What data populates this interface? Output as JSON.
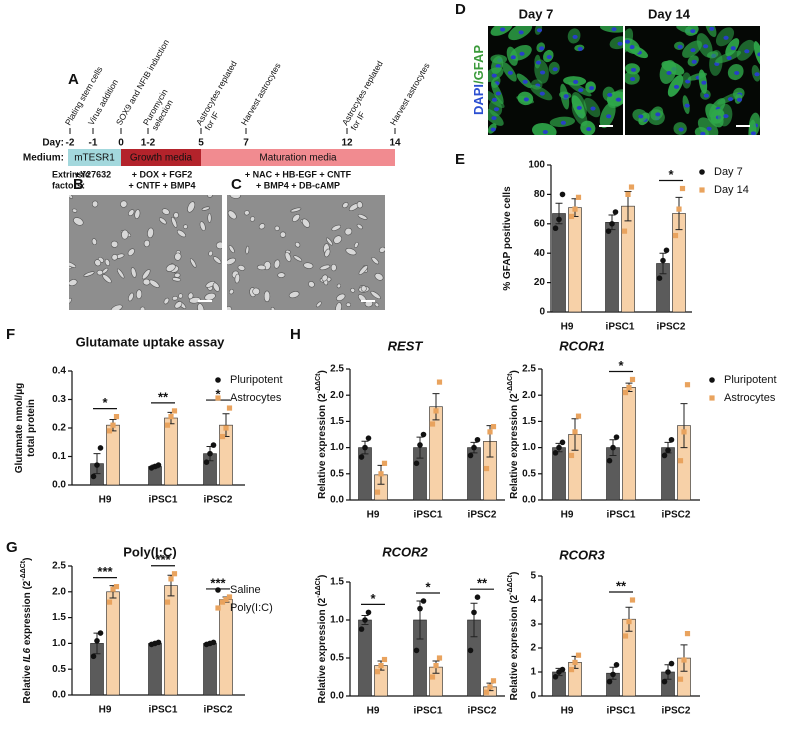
{
  "panel_labels": [
    "A",
    "B",
    "C",
    "D",
    "E",
    "F",
    "G",
    "H"
  ],
  "timeline": {
    "day_label": "Day:",
    "days": [
      "-2",
      "-1",
      "0",
      "1-2",
      "5",
      "7",
      "12",
      "14"
    ],
    "events": [
      [
        "Plating stem cells"
      ],
      [
        "Virus addition"
      ],
      [
        "SOX9 and NFIB induction"
      ],
      [
        "Puromycin",
        "selection"
      ],
      [
        "Astrocytes replated",
        "for IF"
      ],
      [
        "Harvest astrocytes"
      ],
      [
        "Astrocytes replated",
        "for IF"
      ],
      [
        "Harvest astrocytes"
      ]
    ],
    "medium_label": "Medium:",
    "media": [
      {
        "name": "mTESR1",
        "color": "#a3d8dd",
        "text_color": "#111111"
      },
      {
        "name": "Growth media",
        "color": "#b3232b",
        "text_color": "#ffffff"
      },
      {
        "name": "Maturation media",
        "color": "#f18b90",
        "text_color": "#111111"
      }
    ],
    "factors_label": [
      "Extrinsic",
      "factors:"
    ],
    "factors": [
      [
        "+Y27632"
      ],
      [
        "+ DOX + FGF2",
        "+ CNTF + BMP4"
      ],
      [
        "+ NAC + HB-EGF + CNTF",
        "+ BMP4 + DB-cAMP"
      ]
    ]
  },
  "panel_d": {
    "titles": [
      "Day 7",
      "Day 14"
    ],
    "stain": [
      {
        "text": "DAPI",
        "color": "#2b4fd1"
      },
      {
        "text": "/GFAP",
        "color": "#3a9a3a"
      }
    ]
  },
  "chart_data": [
    {
      "type": "bar",
      "ylabel": [
        [
          {
            "text": "% GFAP positive cells"
          }
        ]
      ],
      "categories": [
        "H9",
        "iPSC1",
        "iPSC2"
      ],
      "ylim": [
        0,
        100
      ],
      "yticks": [
        0,
        20,
        40,
        60,
        80,
        100
      ],
      "legend": true,
      "significance": [
        null,
        null,
        "*"
      ],
      "series": [
        {
          "name": "Day 7",
          "color": "#5b5b5b",
          "point_color": "#111111",
          "marker": "circle",
          "values": [
            67,
            61,
            33
          ],
          "errors": [
            7,
            5,
            7
          ],
          "points": [
            [
              57,
              63,
              80
            ],
            [
              55,
              60,
              68
            ],
            [
              23,
              35,
              42
            ]
          ]
        },
        {
          "name": "Day 14",
          "color": "#f7d1a8",
          "point_color": "#e9a35e",
          "marker": "square",
          "values": [
            71,
            72,
            67
          ],
          "errors": [
            6,
            10,
            11
          ],
          "points": [
            [
              65,
              70,
              78
            ],
            [
              55,
              80,
              85
            ],
            [
              52,
              70,
              84
            ]
          ]
        }
      ]
    },
    {
      "type": "bar",
      "title": "Glutamate uptake assay",
      "ylabel": [
        [
          {
            "text": "Glutamate nmol/μg"
          }
        ],
        [
          {
            "text": "total protein"
          }
        ]
      ],
      "categories": [
        "H9",
        "iPSC1",
        "iPSC2"
      ],
      "ylim": [
        0,
        0.4
      ],
      "yticks": [
        {
          "value": 0,
          "label": "0.0"
        },
        0.1,
        0.2,
        0.3,
        0.4
      ],
      "legend": true,
      "significance": [
        "*",
        "**",
        "*"
      ],
      "series": [
        {
          "name": "Pluripotent",
          "color": "#5b5b5b",
          "point_color": "#111111",
          "marker": "circle",
          "values": [
            0.075,
            0.065,
            0.11
          ],
          "errors": [
            0.035,
            0.005,
            0.025
          ],
          "points": [
            [
              0.03,
              0.07,
              0.13
            ],
            [
              0.06,
              0.065,
              0.07
            ],
            [
              0.08,
              0.11,
              0.14
            ]
          ]
        },
        {
          "name": "Astrocytes",
          "color": "#f7d1a8",
          "point_color": "#e9a35e",
          "marker": "square",
          "values": [
            0.21,
            0.235,
            0.21
          ],
          "errors": [
            0.02,
            0.02,
            0.04
          ],
          "points": [
            [
              0.19,
              0.21,
              0.24
            ],
            [
              0.21,
              0.24,
              0.26
            ],
            [
              0.17,
              0.2,
              0.27
            ]
          ]
        }
      ]
    },
    {
      "type": "bar",
      "title": "Poly(I:C)",
      "ylabel": [
        [
          {
            "text": "Relative "
          },
          {
            "text": "IL6",
            "italic": true
          },
          {
            "text": " expression (2"
          },
          {
            "text": "-ΔΔCt",
            "sup": true
          },
          {
            "text": ")"
          }
        ]
      ],
      "categories": [
        "H9",
        "iPSC1",
        "iPSC2"
      ],
      "ylim": [
        0,
        2.5
      ],
      "yticks": [
        {
          "value": 0,
          "label": "0.0"
        },
        0.5,
        {
          "value": 1,
          "label": "1.0"
        },
        1.5,
        {
          "value": 2,
          "label": "2.0"
        },
        2.5
      ],
      "legend": true,
      "significance": [
        "***",
        "***",
        "***"
      ],
      "series": [
        {
          "name": "Saline",
          "color": "#5b5b5b",
          "point_color": "#111111",
          "marker": "circle",
          "values": [
            1.0,
            1.0,
            1.0
          ],
          "errors": [
            0.2,
            0.02,
            0.02
          ],
          "points": [
            [
              0.75,
              1.05,
              1.2
            ],
            [
              0.98,
              1.0,
              1.02
            ],
            [
              0.98,
              1.0,
              1.02
            ]
          ]
        },
        {
          "name": "Poly(I:C)",
          "color": "#f7d1a8",
          "point_color": "#e9a35e",
          "marker": "square",
          "values": [
            2.0,
            2.12,
            1.85
          ],
          "errors": [
            0.12,
            0.2,
            0.05
          ],
          "points": [
            [
              1.8,
              2.05,
              2.1
            ],
            [
              1.8,
              2.25,
              2.35
            ],
            [
              1.8,
              1.85,
              1.9
            ]
          ]
        }
      ]
    },
    {
      "type": "bar",
      "title": "REST",
      "title_italic": true,
      "ylabel": [
        [
          {
            "text": "Relative expression (2"
          },
          {
            "text": "-ΔΔCt",
            "sup": true
          },
          {
            "text": ")"
          }
        ]
      ],
      "categories": [
        "H9",
        "iPSC1",
        "iPSC2"
      ],
      "ylim": [
        0,
        2.5
      ],
      "yticks": [
        {
          "value": 0,
          "label": "0.0"
        },
        0.5,
        {
          "value": 1,
          "label": "1.0"
        },
        1.5,
        {
          "value": 2,
          "label": "2.0"
        },
        2.5
      ],
      "legend": false,
      "significance": [
        null,
        null,
        null
      ],
      "series": [
        {
          "color": "#5b5b5b",
          "point_color": "#111111",
          "marker": "circle",
          "values": [
            1.0,
            1.0,
            1.0
          ],
          "errors": [
            0.12,
            0.2,
            0.1
          ],
          "points": [
            [
              0.82,
              1.0,
              1.18
            ],
            [
              0.7,
              1.05,
              1.25
            ],
            [
              0.85,
              1.0,
              1.15
            ]
          ]
        },
        {
          "color": "#f7d1a8",
          "point_color": "#e9a35e",
          "marker": "square",
          "values": [
            0.48,
            1.78,
            1.12
          ],
          "errors": [
            0.18,
            0.25,
            0.3
          ],
          "points": [
            [
              0.15,
              0.5,
              0.7
            ],
            [
              1.45,
              1.7,
              2.25
            ],
            [
              0.6,
              1.3,
              1.4
            ]
          ]
        }
      ]
    },
    {
      "type": "bar",
      "title": "RCOR1",
      "title_italic": true,
      "ylabel": [
        [
          {
            "text": "Relative expression (2"
          },
          {
            "text": "-ΔΔCt",
            "sup": true
          },
          {
            "text": ")"
          }
        ]
      ],
      "categories": [
        "H9",
        "iPSC1",
        "iPSC2"
      ],
      "ylim": [
        0,
        2.5
      ],
      "yticks": [
        {
          "value": 0,
          "label": "0.0"
        },
        0.5,
        {
          "value": 1,
          "label": "1.0"
        },
        1.5,
        {
          "value": 2,
          "label": "2.0"
        },
        2.5
      ],
      "legend": true,
      "significance": [
        null,
        "*",
        null
      ],
      "series": [
        {
          "name": "Pluripotent",
          "color": "#5b5b5b",
          "point_color": "#111111",
          "marker": "circle",
          "values": [
            1.0,
            1.0,
            1.0
          ],
          "errors": [
            0.08,
            0.15,
            0.1
          ],
          "points": [
            [
              0.9,
              1.0,
              1.1
            ],
            [
              0.75,
              1.0,
              1.2
            ],
            [
              0.85,
              0.95,
              1.15
            ]
          ]
        },
        {
          "name": "Astrocytes",
          "color": "#f7d1a8",
          "point_color": "#e9a35e",
          "marker": "square",
          "values": [
            1.25,
            2.15,
            1.42
          ],
          "errors": [
            0.3,
            0.08,
            0.42
          ],
          "points": [
            [
              0.85,
              1.3,
              1.6
            ],
            [
              2.05,
              2.15,
              2.3
            ],
            [
              0.75,
              1.3,
              2.2
            ]
          ]
        }
      ]
    },
    {
      "type": "bar",
      "title": "RCOR2",
      "title_italic": true,
      "ylabel": [
        [
          {
            "text": "Relative expression (2"
          },
          {
            "text": "-ΔΔCt",
            "sup": true
          },
          {
            "text": ")"
          }
        ]
      ],
      "categories": [
        "H9",
        "iPSC1",
        "iPSC2"
      ],
      "ylim": [
        0,
        1.5
      ],
      "yticks": [
        {
          "value": 0,
          "label": "0.0"
        },
        0.5,
        {
          "value": 1,
          "label": "1.0"
        },
        1.5
      ],
      "legend": false,
      "significance": [
        "*",
        "*",
        "**"
      ],
      "series": [
        {
          "color": "#5b5b5b",
          "point_color": "#111111",
          "marker": "circle",
          "values": [
            1.0,
            1.0,
            1.0
          ],
          "errors": [
            0.06,
            0.25,
            0.22
          ],
          "points": [
            [
              0.88,
              1.0,
              1.1
            ],
            [
              0.6,
              1.15,
              1.25
            ],
            [
              0.6,
              1.1,
              1.3
            ]
          ]
        },
        {
          "color": "#f7d1a8",
          "point_color": "#e9a35e",
          "marker": "square",
          "values": [
            0.4,
            0.38,
            0.12
          ],
          "errors": [
            0.06,
            0.08,
            0.05
          ],
          "points": [
            [
              0.32,
              0.4,
              0.48
            ],
            [
              0.25,
              0.4,
              0.5
            ],
            [
              0.05,
              0.12,
              0.2
            ]
          ]
        }
      ]
    },
    {
      "type": "bar",
      "title": "RCOR3",
      "title_italic": true,
      "ylabel": [
        [
          {
            "text": "Relative expression (2"
          },
          {
            "text": "-ΔΔCt",
            "sup": true
          },
          {
            "text": ")"
          }
        ]
      ],
      "categories": [
        "H9",
        "iPSC1",
        "iPSC2"
      ],
      "ylim": [
        0,
        5
      ],
      "yticks": [
        0,
        1,
        2,
        3,
        4,
        5
      ],
      "legend": false,
      "significance": [
        null,
        "**",
        null
      ],
      "series": [
        {
          "color": "#5b5b5b",
          "point_color": "#111111",
          "marker": "circle",
          "values": [
            1.0,
            0.95,
            1.0
          ],
          "errors": [
            0.15,
            0.25,
            0.3
          ],
          "points": [
            [
              0.8,
              1.0,
              1.1
            ],
            [
              0.6,
              0.9,
              1.3
            ],
            [
              0.6,
              1.0,
              1.35
            ]
          ]
        },
        {
          "color": "#f7d1a8",
          "point_color": "#e9a35e",
          "marker": "square",
          "values": [
            1.4,
            3.2,
            1.58
          ],
          "errors": [
            0.25,
            0.5,
            0.55
          ],
          "points": [
            [
              1.1,
              1.4,
              1.7
            ],
            [
              2.5,
              3.1,
              4.0
            ],
            [
              0.7,
              1.5,
              2.6
            ]
          ]
        }
      ]
    }
  ]
}
